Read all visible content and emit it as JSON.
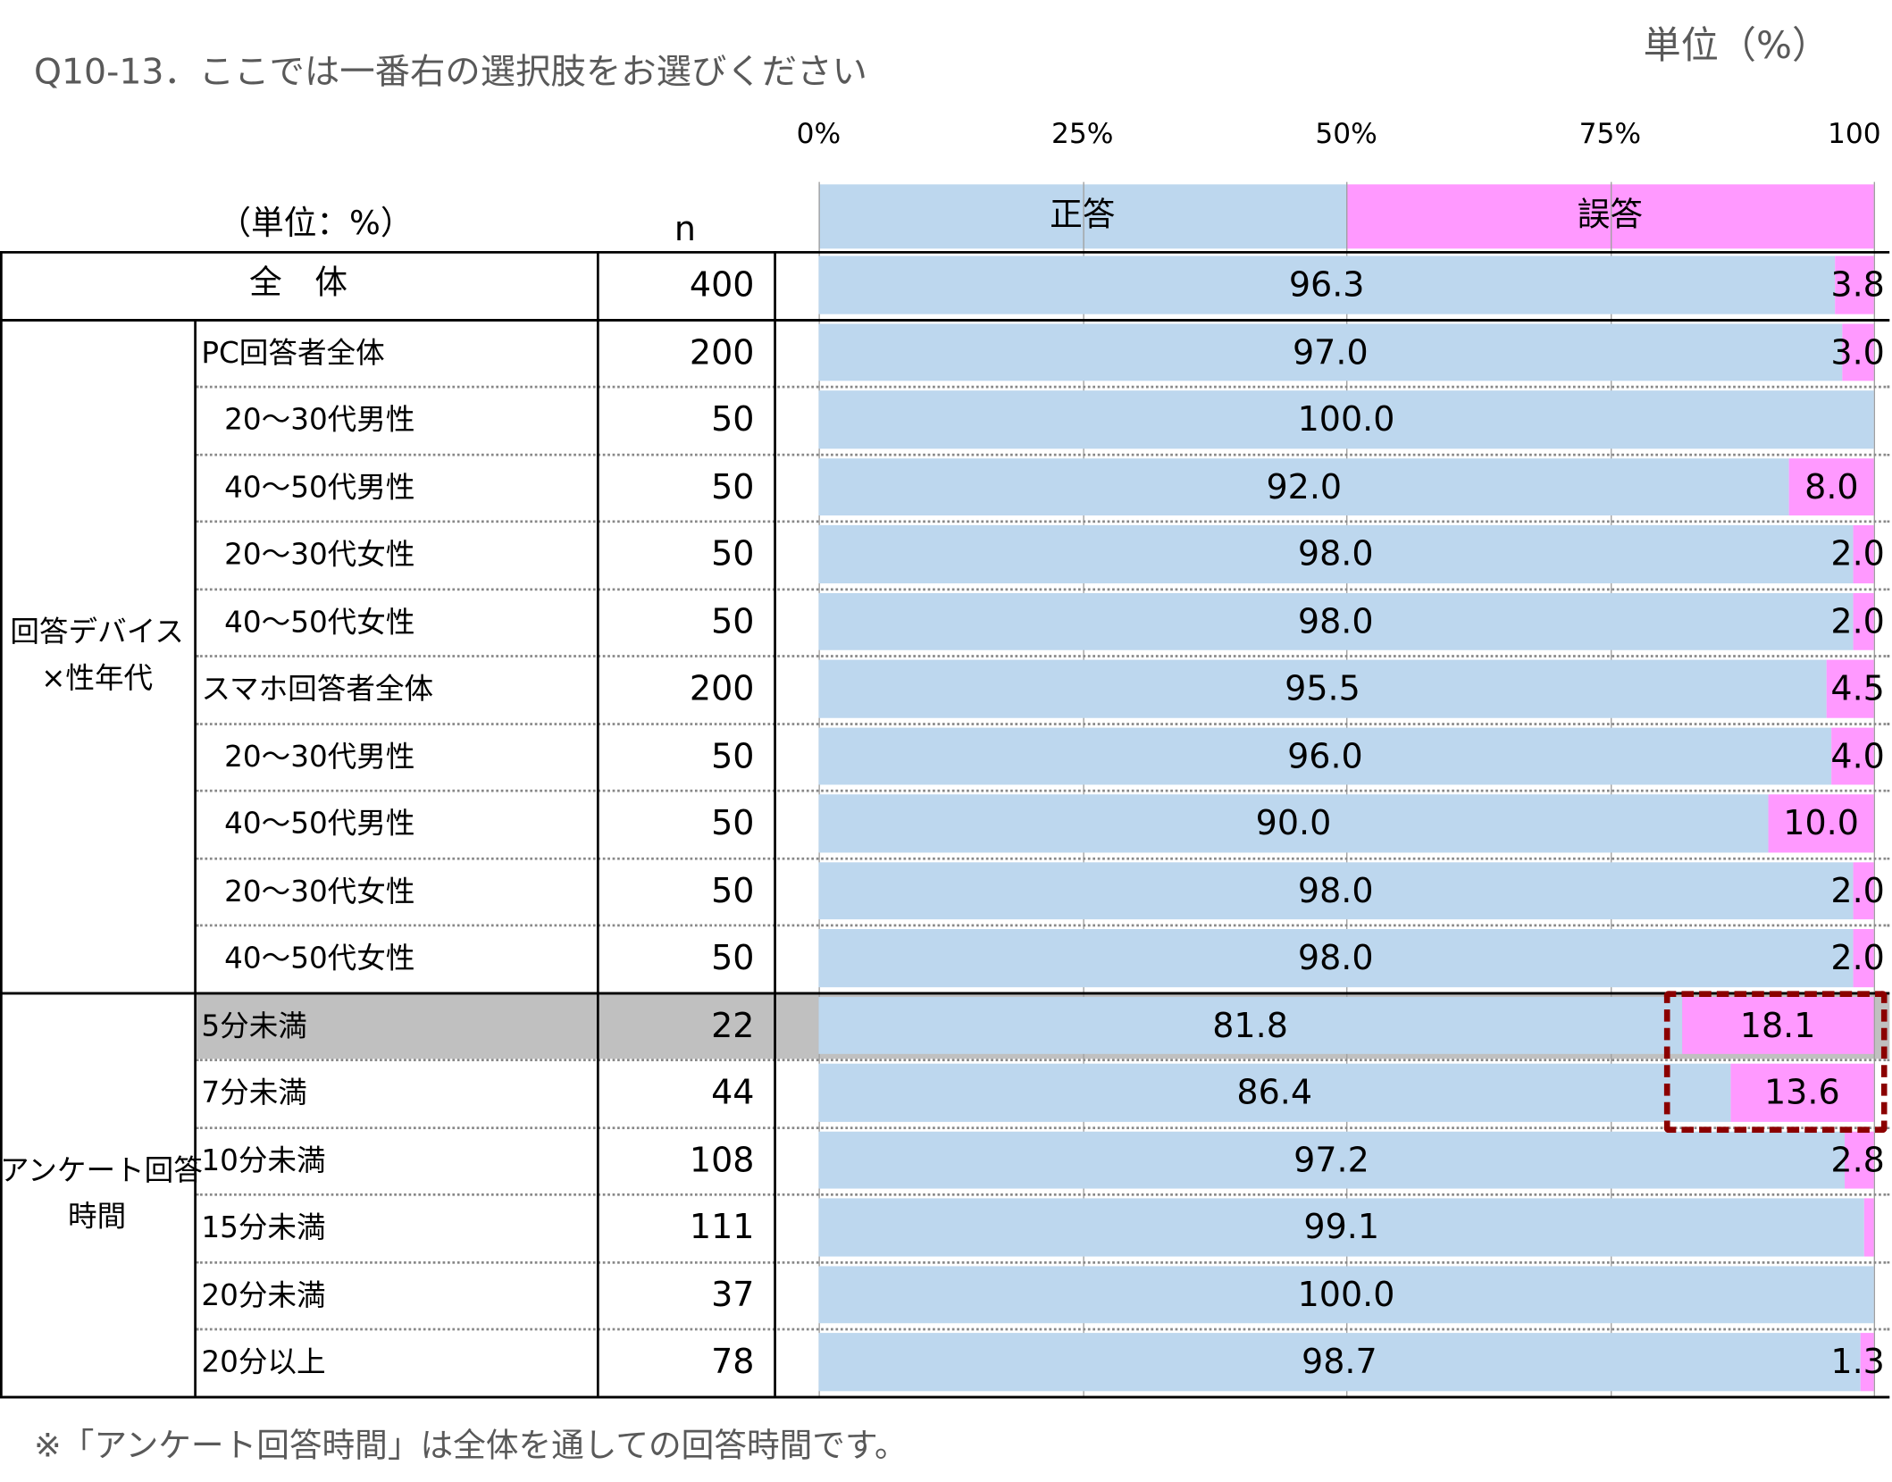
{
  "title": "Q10-13．ここでは一番右の選択肢をお選びください",
  "unit_top": "単位（%）",
  "header": {
    "unit": "（単位：%）",
    "n": "n"
  },
  "footnote": "※「アンケート回答時間」は全体を通しての回答時間です。",
  "groups": [
    {
      "label": "回答デバイス\n×性年代",
      "first_row": 1,
      "last_row": 10
    },
    {
      "label": "アンケート回答\n時間",
      "first_row": 11,
      "last_row": 16
    }
  ],
  "colors": {
    "correct": "#bdd7ee",
    "wrong": "#ff99ff",
    "highlight": "#c0c0c0",
    "callout": "#8b0000"
  },
  "chart_data": {
    "type": "bar",
    "orientation": "horizontal-stacked-100",
    "xlim": [
      0,
      100
    ],
    "ticks": [
      "0%",
      "25%",
      "50%",
      "75%",
      "100"
    ],
    "tick_values": [
      0,
      25,
      50,
      75,
      100
    ],
    "legend": [
      "正答",
      "誤答"
    ],
    "legend_placement": "top",
    "grid": true,
    "rows": [
      {
        "label": "全　体",
        "n": "400",
        "correct": 96.3,
        "wrong": 3.8,
        "correct_label": "96.3",
        "wrong_label": "3.8"
      },
      {
        "label": "PC回答者全体",
        "n": "200",
        "correct": 97.0,
        "wrong": 3.0,
        "correct_label": "97.0",
        "wrong_label": "3.0"
      },
      {
        "label": "20～30代男性",
        "indent": true,
        "n": "50",
        "correct": 100.0,
        "wrong": 0,
        "correct_label": "100.0",
        "wrong_label": null
      },
      {
        "label": "40～50代男性",
        "indent": true,
        "n": "50",
        "correct": 92.0,
        "wrong": 8.0,
        "correct_label": "92.0",
        "wrong_label": "8.0"
      },
      {
        "label": "20～30代女性",
        "indent": true,
        "n": "50",
        "correct": 98.0,
        "wrong": 2.0,
        "correct_label": "98.0",
        "wrong_label": "2.0"
      },
      {
        "label": "40～50代女性",
        "indent": true,
        "n": "50",
        "correct": 98.0,
        "wrong": 2.0,
        "correct_label": "98.0",
        "wrong_label": "2.0"
      },
      {
        "label": "スマホ回答者全体",
        "n": "200",
        "correct": 95.5,
        "wrong": 4.5,
        "correct_label": "95.5",
        "wrong_label": "4.5"
      },
      {
        "label": "20～30代男性",
        "indent": true,
        "n": "50",
        "correct": 96.0,
        "wrong": 4.0,
        "correct_label": "96.0",
        "wrong_label": "4.0"
      },
      {
        "label": "40～50代男性",
        "indent": true,
        "n": "50",
        "correct": 90.0,
        "wrong": 10.0,
        "correct_label": "90.0",
        "wrong_label": "10.0"
      },
      {
        "label": "20～30代女性",
        "indent": true,
        "n": "50",
        "correct": 98.0,
        "wrong": 2.0,
        "correct_label": "98.0",
        "wrong_label": "2.0"
      },
      {
        "label": "40～50代女性",
        "indent": true,
        "n": "50",
        "correct": 98.0,
        "wrong": 2.0,
        "correct_label": "98.0",
        "wrong_label": "2.0"
      },
      {
        "label": "5分未満",
        "n": "22",
        "correct": 81.8,
        "wrong": 18.1,
        "correct_label": "81.8",
        "wrong_label": "18.1",
        "highlight": true
      },
      {
        "label": "7分未満",
        "n": "44",
        "correct": 86.4,
        "wrong": 13.6,
        "correct_label": "86.4",
        "wrong_label": "13.6"
      },
      {
        "label": "10分未満",
        "n": "108",
        "correct": 97.2,
        "wrong": 2.8,
        "correct_label": "97.2",
        "wrong_label": "2.8"
      },
      {
        "label": "15分未満",
        "n": "111",
        "correct": 99.1,
        "wrong": 0.9,
        "correct_label": "99.1",
        "wrong_label": null
      },
      {
        "label": "20分未満",
        "n": "37",
        "correct": 100.0,
        "wrong": 0,
        "correct_label": "100.0",
        "wrong_label": null
      },
      {
        "label": "20分以上",
        "n": "78",
        "correct": 98.7,
        "wrong": 1.3,
        "correct_label": "98.7",
        "wrong_label": "1.3"
      }
    ]
  }
}
